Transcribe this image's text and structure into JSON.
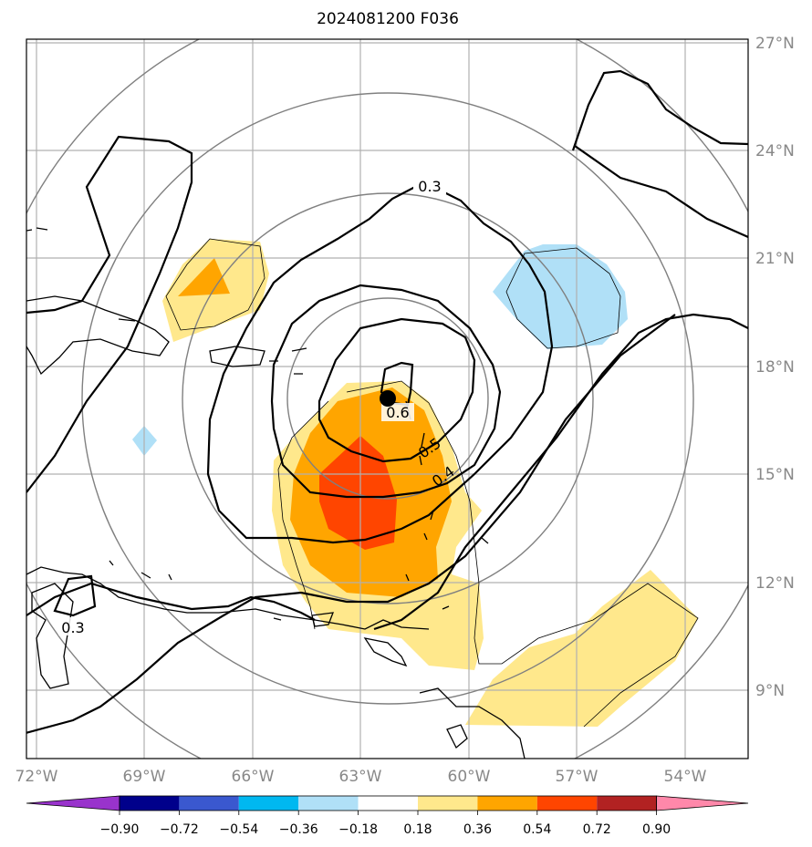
{
  "title": "2024081200 F036",
  "map": {
    "lon_ticks": [
      "72°W",
      "69°W",
      "66°W",
      "63°W",
      "60°W",
      "57°W",
      "54°W"
    ],
    "lat_ticks": [
      "27°N",
      "24°N",
      "21°N",
      "18°N",
      "15°N",
      "12°N",
      "9°N"
    ],
    "contour_labels": [
      "0.3",
      "0.6",
      "0.5",
      "0.4",
      "0.3"
    ],
    "storm_marker": "black-dot"
  },
  "colorbar": {
    "ticks": [
      "−0.90",
      "−0.72",
      "−0.54",
      "−0.36",
      "−0.18",
      "0.18",
      "0.36",
      "0.54",
      "0.72",
      "0.90"
    ],
    "colors": [
      "#9933cc",
      "#00008b",
      "#3a58cf",
      "#00b8f0",
      "#b0e0f7",
      "#ffffff",
      "#ffe88c",
      "#ffa500",
      "#ff4500",
      "#b22222",
      "#ff88aa"
    ]
  }
}
